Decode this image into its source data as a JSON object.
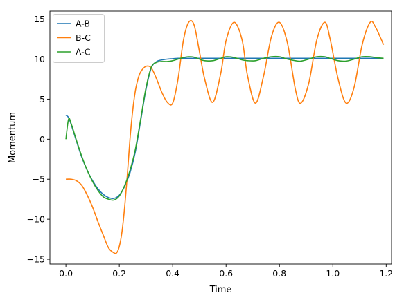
{
  "chart_data": {
    "type": "line",
    "xlabel": "Time",
    "ylabel": "Momentum",
    "xlim": [
      -0.06,
      1.22
    ],
    "ylim": [
      -15.6,
      16.0
    ],
    "xticks": [
      0.0,
      0.2,
      0.4,
      0.6,
      0.8,
      1.0,
      1.2
    ],
    "xtick_labels": [
      "0.0",
      "0.2",
      "0.4",
      "0.6",
      "0.8",
      "1.0",
      "1.2"
    ],
    "yticks": [
      -15,
      -10,
      -5,
      0,
      5,
      10,
      15
    ],
    "ytick_labels": [
      "−15",
      "−10",
      "−5",
      "0",
      "5",
      "10",
      "15"
    ],
    "grid": false,
    "legend_position": "top-left",
    "series": [
      {
        "name": "A-B",
        "color": "#1f77b4",
        "x": [
          0.0,
          0.01,
          0.02,
          0.04,
          0.06,
          0.08,
          0.1,
          0.12,
          0.14,
          0.16,
          0.18,
          0.2,
          0.22,
          0.24,
          0.26,
          0.28,
          0.3,
          0.32,
          0.34,
          0.36,
          0.38,
          0.4,
          0.42,
          0.45,
          0.5,
          0.55,
          0.6,
          0.7,
          0.8,
          0.9,
          1.0,
          1.1,
          1.19
        ],
        "y": [
          3.0,
          2.7,
          1.8,
          -0.3,
          -2.3,
          -3.9,
          -5.2,
          -6.2,
          -6.9,
          -7.3,
          -7.4,
          -7.0,
          -5.9,
          -4.2,
          -1.6,
          2.3,
          6.2,
          8.9,
          9.7,
          9.9,
          10.0,
          10.05,
          10.1,
          10.1,
          10.1,
          10.1,
          10.1,
          10.1,
          10.1,
          10.1,
          10.1,
          10.1,
          10.1
        ]
      },
      {
        "name": "B-C",
        "color": "#ff7f0e",
        "x": [
          0.0,
          0.02,
          0.04,
          0.06,
          0.08,
          0.1,
          0.12,
          0.14,
          0.16,
          0.18,
          0.19,
          0.2,
          0.21,
          0.22,
          0.23,
          0.24,
          0.25,
          0.26,
          0.27,
          0.28,
          0.3,
          0.32,
          0.34,
          0.36,
          0.38,
          0.4,
          0.42,
          0.44,
          0.46,
          0.48,
          0.5,
          0.52,
          0.55,
          0.58,
          0.6,
          0.63,
          0.66,
          0.68,
          0.71,
          0.74,
          0.77,
          0.8,
          0.83,
          0.86,
          0.88,
          0.91,
          0.94,
          0.97,
          0.99,
          1.02,
          1.05,
          1.08,
          1.11,
          1.14,
          1.16,
          1.19
        ],
        "y": [
          -5.0,
          -5.0,
          -5.2,
          -5.8,
          -7.0,
          -8.5,
          -10.3,
          -12.0,
          -13.6,
          -14.2,
          -14.2,
          -13.4,
          -11.6,
          -8.5,
          -4.5,
          0.0,
          3.5,
          6.0,
          7.5,
          8.4,
          9.1,
          8.9,
          7.5,
          5.8,
          4.6,
          4.5,
          7.5,
          12.3,
          14.6,
          14.3,
          11.0,
          7.5,
          4.6,
          8.2,
          12.3,
          14.6,
          12.4,
          8.0,
          4.5,
          7.8,
          12.8,
          14.6,
          12.0,
          6.2,
          4.5,
          7.0,
          12.4,
          14.6,
          12.5,
          7.5,
          4.5,
          6.5,
          11.8,
          14.6,
          14.0,
          11.8
        ]
      },
      {
        "name": "A-C",
        "color": "#2ca02c",
        "x": [
          0.0,
          0.01,
          0.02,
          0.04,
          0.06,
          0.08,
          0.1,
          0.12,
          0.14,
          0.16,
          0.18,
          0.2,
          0.22,
          0.24,
          0.26,
          0.28,
          0.3,
          0.32,
          0.34,
          0.36,
          0.38,
          0.4,
          0.42,
          0.44,
          0.46,
          0.48,
          0.5,
          0.52,
          0.55,
          0.58,
          0.6,
          0.63,
          0.66,
          0.68,
          0.71,
          0.74,
          0.77,
          0.8,
          0.83,
          0.86,
          0.88,
          0.91,
          0.94,
          0.97,
          0.99,
          1.02,
          1.05,
          1.08,
          1.11,
          1.14,
          1.16,
          1.19
        ],
        "y": [
          0.0,
          2.5,
          1.9,
          -0.2,
          -2.2,
          -3.9,
          -5.3,
          -6.4,
          -7.2,
          -7.5,
          -7.6,
          -7.1,
          -5.8,
          -3.9,
          -1.3,
          2.5,
          6.4,
          9.0,
          9.6,
          9.7,
          9.7,
          9.8,
          10.0,
          10.2,
          10.3,
          10.25,
          10.0,
          9.8,
          9.8,
          10.1,
          10.3,
          10.2,
          9.9,
          9.8,
          9.8,
          10.1,
          10.3,
          10.3,
          10.0,
          9.8,
          9.75,
          10.0,
          10.3,
          10.3,
          10.1,
          9.8,
          9.75,
          10.0,
          10.3,
          10.3,
          10.2,
          10.1
        ]
      }
    ]
  }
}
